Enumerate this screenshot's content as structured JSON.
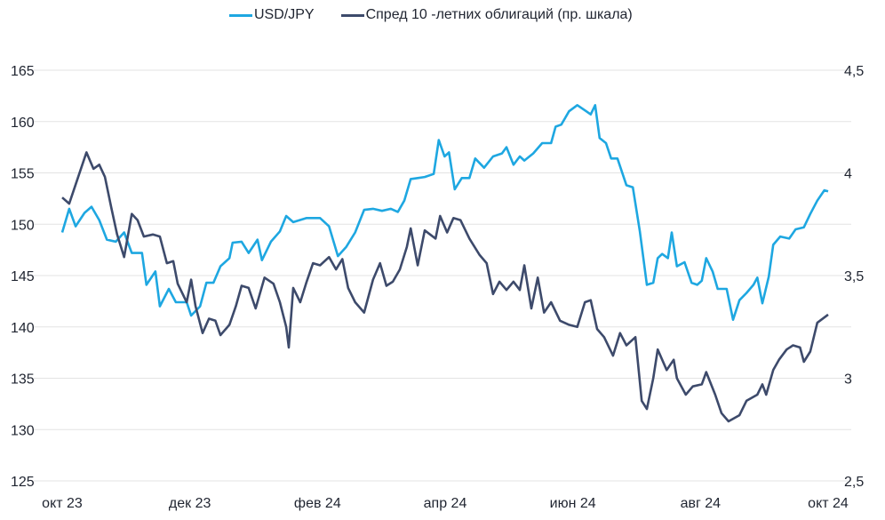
{
  "chart_data": {
    "type": "line",
    "title": "",
    "legend_position": "top-center",
    "x_ticks": [
      "окт 23",
      "дек 23",
      "фев 24",
      "апр 24",
      "июн 24",
      "авг 24",
      "окт 24"
    ],
    "x_unit": "months since окт 23",
    "xlim": [
      0,
      12
    ],
    "y_left": {
      "ticks": [
        "125",
        "130",
        "135",
        "140",
        "145",
        "150",
        "155",
        "160",
        "165"
      ],
      "lim": [
        125,
        165
      ]
    },
    "y_right": {
      "ticks": [
        "2,5",
        "3",
        "3,5",
        "4",
        "4,5"
      ],
      "lim": [
        2.5,
        4.5
      ]
    },
    "grid": true,
    "series": [
      {
        "name": "USD/JPY",
        "axis": "left",
        "color": "#1ea7e1",
        "points": [
          [
            0,
            149.2
          ],
          [
            0.11,
            151.5
          ],
          [
            0.21,
            149.8
          ],
          [
            0.35,
            151.1
          ],
          [
            0.46,
            151.7
          ],
          [
            0.58,
            150.4
          ],
          [
            0.7,
            148.5
          ],
          [
            0.84,
            148.3
          ],
          [
            0.97,
            149.2
          ],
          [
            1.09,
            147.2
          ],
          [
            1.25,
            147.2
          ],
          [
            1.32,
            144.1
          ],
          [
            1.46,
            145.4
          ],
          [
            1.53,
            142
          ],
          [
            1.67,
            143.7
          ],
          [
            1.78,
            142.4
          ],
          [
            1.95,
            142.4
          ],
          [
            2.02,
            141.1
          ],
          [
            2.16,
            142
          ],
          [
            2.26,
            144.3
          ],
          [
            2.37,
            144.3
          ],
          [
            2.48,
            145.9
          ],
          [
            2.62,
            146.7
          ],
          [
            2.67,
            148.2
          ],
          [
            2.81,
            148.3
          ],
          [
            2.92,
            147.2
          ],
          [
            3.06,
            148.5
          ],
          [
            3.13,
            146.5
          ],
          [
            3.27,
            148.3
          ],
          [
            3.41,
            149.3
          ],
          [
            3.51,
            150.8
          ],
          [
            3.62,
            150.2
          ],
          [
            3.83,
            150.6
          ],
          [
            4.04,
            150.6
          ],
          [
            4.18,
            149.8
          ],
          [
            4.32,
            146.9
          ],
          [
            4.45,
            147.8
          ],
          [
            4.59,
            149.2
          ],
          [
            4.73,
            151.4
          ],
          [
            4.87,
            151.5
          ],
          [
            5.01,
            151.3
          ],
          [
            5.15,
            151.5
          ],
          [
            5.26,
            151.2
          ],
          [
            5.36,
            152.3
          ],
          [
            5.46,
            154.4
          ],
          [
            5.57,
            154.5
          ],
          [
            5.68,
            154.6
          ],
          [
            5.82,
            154.9
          ],
          [
            5.9,
            158.2
          ],
          [
            5.99,
            156.6
          ],
          [
            6.06,
            157
          ],
          [
            6.15,
            153.4
          ],
          [
            6.26,
            154.5
          ],
          [
            6.38,
            154.5
          ],
          [
            6.47,
            156.4
          ],
          [
            6.61,
            155.5
          ],
          [
            6.75,
            156.6
          ],
          [
            6.89,
            156.9
          ],
          [
            6.96,
            157.5
          ],
          [
            7.07,
            155.8
          ],
          [
            7.17,
            156.6
          ],
          [
            7.24,
            156.2
          ],
          [
            7.38,
            156.9
          ],
          [
            7.52,
            157.9
          ],
          [
            7.66,
            157.9
          ],
          [
            7.73,
            159.5
          ],
          [
            7.82,
            159.7
          ],
          [
            7.94,
            161
          ],
          [
            8.07,
            161.6
          ],
          [
            8.21,
            161
          ],
          [
            8.28,
            160.7
          ],
          [
            8.35,
            161.6
          ],
          [
            8.42,
            158.4
          ],
          [
            8.52,
            157.9
          ],
          [
            8.6,
            156.4
          ],
          [
            8.7,
            156.4
          ],
          [
            8.84,
            153.8
          ],
          [
            8.94,
            153.6
          ],
          [
            9.05,
            149.3
          ],
          [
            9.16,
            144.1
          ],
          [
            9.26,
            144.3
          ],
          [
            9.33,
            146.7
          ],
          [
            9.4,
            147.1
          ],
          [
            9.49,
            146.7
          ],
          [
            9.55,
            149.2
          ],
          [
            9.63,
            145.9
          ],
          [
            9.75,
            146.3
          ],
          [
            9.86,
            144.3
          ],
          [
            9.95,
            144.1
          ],
          [
            10.02,
            144.5
          ],
          [
            10.09,
            146.7
          ],
          [
            10.19,
            145.4
          ],
          [
            10.27,
            143.7
          ],
          [
            10.41,
            143.7
          ],
          [
            10.51,
            140.7
          ],
          [
            10.61,
            142.6
          ],
          [
            10.72,
            143.3
          ],
          [
            10.83,
            144.1
          ],
          [
            10.89,
            144.8
          ],
          [
            10.97,
            142.3
          ],
          [
            11.07,
            144.9
          ],
          [
            11.14,
            148
          ],
          [
            11.25,
            148.8
          ],
          [
            11.39,
            148.6
          ],
          [
            11.49,
            149.5
          ],
          [
            11.62,
            149.7
          ],
          [
            11.72,
            151
          ],
          [
            11.83,
            152.3
          ],
          [
            11.94,
            153.3
          ],
          [
            12,
            153.2
          ]
        ]
      },
      {
        "name": "Спред 10 -летних облигаций (пр. шкала)",
        "axis": "right",
        "color": "#3d4a6b",
        "points": [
          [
            0,
            3.88
          ],
          [
            0.11,
            3.85
          ],
          [
            0.25,
            3.98
          ],
          [
            0.38,
            4.1
          ],
          [
            0.49,
            4.02
          ],
          [
            0.58,
            4.04
          ],
          [
            0.67,
            3.98
          ],
          [
            0.77,
            3.83
          ],
          [
            0.86,
            3.7
          ],
          [
            0.97,
            3.59
          ],
          [
            1.09,
            3.8
          ],
          [
            1.18,
            3.77
          ],
          [
            1.28,
            3.69
          ],
          [
            1.42,
            3.7
          ],
          [
            1.53,
            3.69
          ],
          [
            1.64,
            3.56
          ],
          [
            1.74,
            3.57
          ],
          [
            1.81,
            3.46
          ],
          [
            1.95,
            3.37
          ],
          [
            2.02,
            3.48
          ],
          [
            2.09,
            3.35
          ],
          [
            2.2,
            3.22
          ],
          [
            2.3,
            3.29
          ],
          [
            2.4,
            3.28
          ],
          [
            2.48,
            3.21
          ],
          [
            2.62,
            3.26
          ],
          [
            2.72,
            3.35
          ],
          [
            2.81,
            3.45
          ],
          [
            2.92,
            3.44
          ],
          [
            3.03,
            3.34
          ],
          [
            3.17,
            3.49
          ],
          [
            3.31,
            3.46
          ],
          [
            3.41,
            3.37
          ],
          [
            3.51,
            3.25
          ],
          [
            3.55,
            3.15
          ],
          [
            3.62,
            3.44
          ],
          [
            3.73,
            3.37
          ],
          [
            3.83,
            3.47
          ],
          [
            3.93,
            3.56
          ],
          [
            4.04,
            3.55
          ],
          [
            4.18,
            3.59
          ],
          [
            4.29,
            3.53
          ],
          [
            4.39,
            3.58
          ],
          [
            4.48,
            3.44
          ],
          [
            4.59,
            3.37
          ],
          [
            4.73,
            3.32
          ],
          [
            4.87,
            3.48
          ],
          [
            4.98,
            3.56
          ],
          [
            5.08,
            3.45
          ],
          [
            5.18,
            3.47
          ],
          [
            5.29,
            3.53
          ],
          [
            5.4,
            3.64
          ],
          [
            5.46,
            3.73
          ],
          [
            5.57,
            3.55
          ],
          [
            5.68,
            3.72
          ],
          [
            5.85,
            3.68
          ],
          [
            5.92,
            3.79
          ],
          [
            6.03,
            3.71
          ],
          [
            6.13,
            3.78
          ],
          [
            6.24,
            3.77
          ],
          [
            6.38,
            3.68
          ],
          [
            6.54,
            3.6
          ],
          [
            6.65,
            3.56
          ],
          [
            6.75,
            3.41
          ],
          [
            6.85,
            3.47
          ],
          [
            6.96,
            3.43
          ],
          [
            7.07,
            3.47
          ],
          [
            7.17,
            3.43
          ],
          [
            7.24,
            3.55
          ],
          [
            7.35,
            3.34
          ],
          [
            7.45,
            3.49
          ],
          [
            7.55,
            3.32
          ],
          [
            7.66,
            3.37
          ],
          [
            7.8,
            3.28
          ],
          [
            7.94,
            3.26
          ],
          [
            8.07,
            3.25
          ],
          [
            8.19,
            3.37
          ],
          [
            8.28,
            3.38
          ],
          [
            8.38,
            3.24
          ],
          [
            8.49,
            3.2
          ],
          [
            8.63,
            3.11
          ],
          [
            8.74,
            3.22
          ],
          [
            8.84,
            3.16
          ],
          [
            8.98,
            3.2
          ],
          [
            9.08,
            2.89
          ],
          [
            9.16,
            2.85
          ],
          [
            9.26,
            3
          ],
          [
            9.33,
            3.14
          ],
          [
            9.47,
            3.04
          ],
          [
            9.58,
            3.09
          ],
          [
            9.63,
            3
          ],
          [
            9.77,
            2.92
          ],
          [
            9.88,
            2.96
          ],
          [
            10.02,
            2.97
          ],
          [
            10.09,
            3.03
          ],
          [
            10.23,
            2.92
          ],
          [
            10.33,
            2.83
          ],
          [
            10.44,
            2.79
          ],
          [
            10.61,
            2.82
          ],
          [
            10.72,
            2.89
          ],
          [
            10.89,
            2.92
          ],
          [
            10.97,
            2.97
          ],
          [
            11.03,
            2.92
          ],
          [
            11.14,
            3.04
          ],
          [
            11.23,
            3.09
          ],
          [
            11.35,
            3.14
          ],
          [
            11.45,
            3.16
          ],
          [
            11.56,
            3.15
          ],
          [
            11.62,
            3.08
          ],
          [
            11.72,
            3.13
          ],
          [
            11.83,
            3.27
          ],
          [
            12,
            3.31
          ]
        ]
      }
    ]
  }
}
